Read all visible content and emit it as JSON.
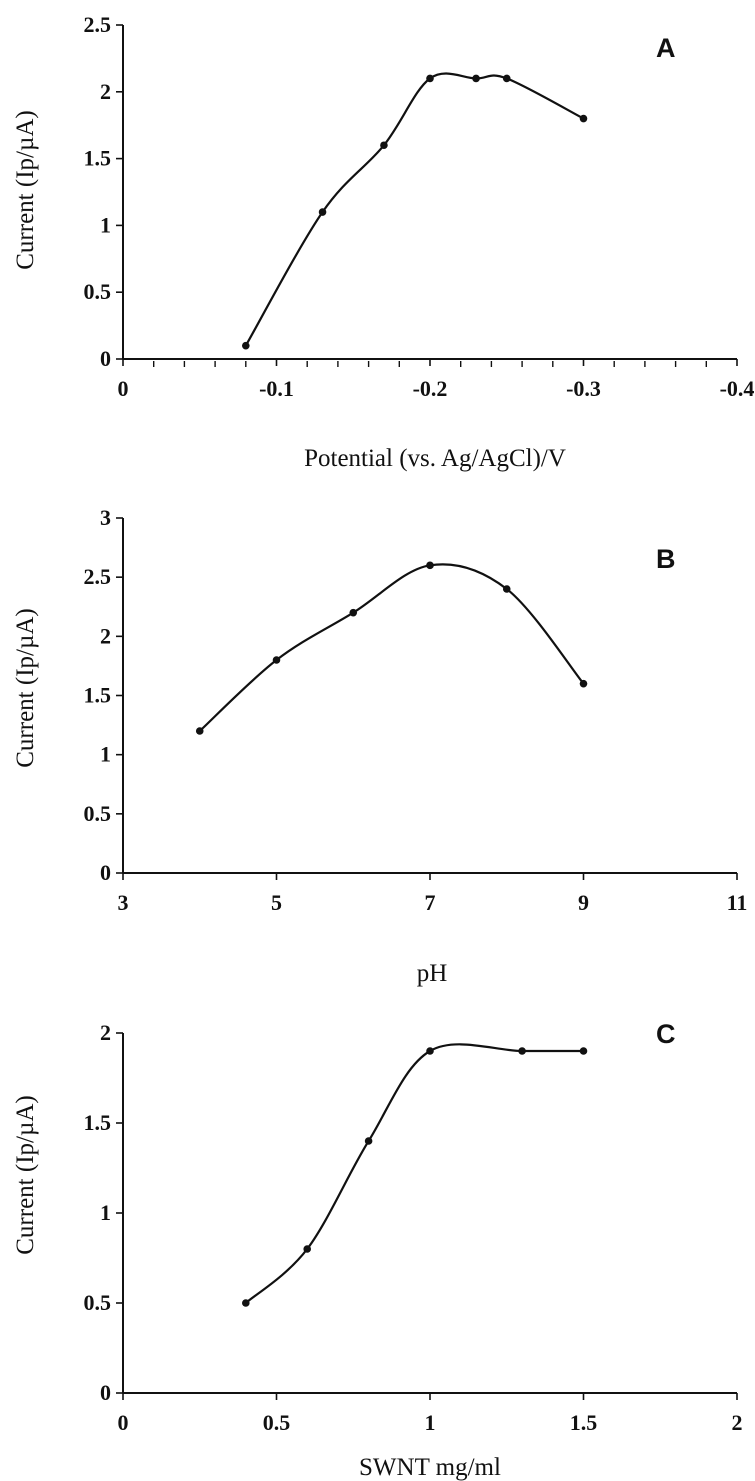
{
  "chart_data": [
    {
      "type": "line",
      "panel_label": "A",
      "xlabel": "Potential (vs. Ag/AgCl)/V",
      "ylabel": "Current (Ip/µA)",
      "xlim": [
        0,
        -0.4
      ],
      "ylim": [
        0,
        2.5
      ],
      "xticks": [
        0,
        -0.1,
        -0.2,
        -0.3,
        -0.4
      ],
      "xtick_labels": [
        "0",
        "-0.1",
        "-0.2",
        "-0.3",
        "-0.4"
      ],
      "yticks": [
        0,
        0.5,
        1,
        1.5,
        2,
        2.5
      ],
      "ytick_labels": [
        "0",
        "0.5",
        "1",
        "1.5",
        "2",
        "2.5"
      ],
      "x_minor_ticks": 4,
      "grid": false,
      "smooth": true,
      "series": [
        {
          "x": [
            -0.08,
            -0.13,
            -0.17,
            -0.2,
            -0.23,
            -0.25,
            -0.3
          ],
          "y": [
            0.1,
            1.1,
            1.6,
            2.1,
            2.1,
            2.1,
            1.8
          ]
        }
      ]
    },
    {
      "type": "line",
      "panel_label": "B",
      "xlabel": "pH",
      "ylabel": "Current (Ip/µA)",
      "xlim": [
        3,
        11
      ],
      "ylim": [
        0,
        3
      ],
      "xticks": [
        3,
        5,
        7,
        9,
        11
      ],
      "xtick_labels": [
        "3",
        "5",
        "7",
        "9",
        "11"
      ],
      "yticks": [
        0,
        0.5,
        1,
        1.5,
        2,
        2.5,
        3
      ],
      "ytick_labels": [
        "0",
        "0.5",
        "1",
        "1.5",
        "2",
        "2.5",
        "3"
      ],
      "x_minor_ticks": 0,
      "grid": false,
      "smooth": true,
      "series": [
        {
          "x": [
            4,
            5,
            6,
            7,
            8,
            9
          ],
          "y": [
            1.2,
            1.8,
            2.2,
            2.6,
            2.4,
            1.6
          ]
        }
      ]
    },
    {
      "type": "line",
      "panel_label": "C",
      "xlabel": "SWNT  mg/ml",
      "ylabel": "Current (Ip/µA)",
      "xlim": [
        0,
        2
      ],
      "ylim": [
        0,
        2
      ],
      "xticks": [
        0,
        0.5,
        1,
        1.5,
        2
      ],
      "xtick_labels": [
        "0",
        "0.5",
        "1",
        "1.5",
        "2"
      ],
      "yticks": [
        0,
        0.5,
        1,
        1.5,
        2
      ],
      "ytick_labels": [
        "0",
        "0.5",
        "1",
        "1.5",
        "2"
      ],
      "x_minor_ticks": 0,
      "grid": false,
      "smooth": true,
      "series": [
        {
          "x": [
            0.4,
            0.6,
            0.8,
            1.0,
            1.3,
            1.5
          ],
          "y": [
            0.5,
            0.8,
            1.4,
            1.9,
            1.9,
            1.9
          ]
        }
      ]
    }
  ]
}
